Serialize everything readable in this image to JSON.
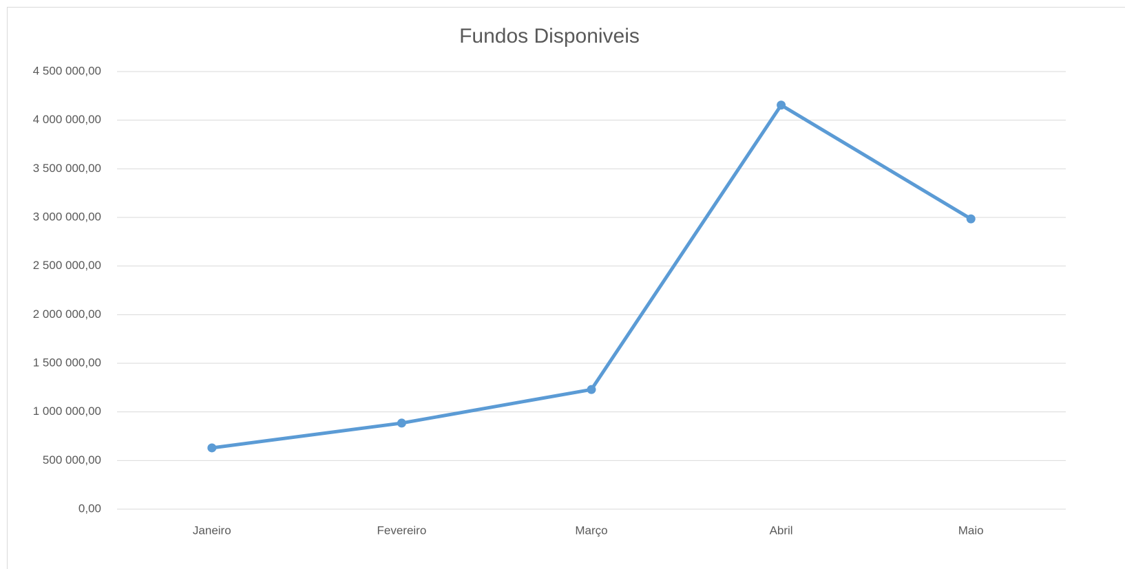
{
  "chart_data": {
    "type": "line",
    "title": "Fundos Disponiveis",
    "categories": [
      "Janeiro",
      "Fevereiro",
      "Março",
      "Abril",
      "Maio"
    ],
    "series": [
      {
        "color": "#5b9bd5",
        "values": [
          630000,
          885000,
          1230000,
          4155000,
          2985000
        ]
      }
    ],
    "ylim": [
      0,
      4500000
    ],
    "yticks": [
      {
        "value": 0,
        "label": "0,00"
      },
      {
        "value": 500000,
        "label": "500 000,00"
      },
      {
        "value": 1000000,
        "label": "1 000 000,00"
      },
      {
        "value": 1500000,
        "label": "1 500 000,00"
      },
      {
        "value": 2000000,
        "label": "2 000 000,00"
      },
      {
        "value": 2500000,
        "label": "2 500 000,00"
      },
      {
        "value": 3000000,
        "label": "3 000 000,00"
      },
      {
        "value": 3500000,
        "label": "3 500 000,00"
      },
      {
        "value": 4000000,
        "label": "4 000 000,00"
      },
      {
        "value": 4500000,
        "label": "4 500 000,00"
      }
    ],
    "grid": true
  }
}
